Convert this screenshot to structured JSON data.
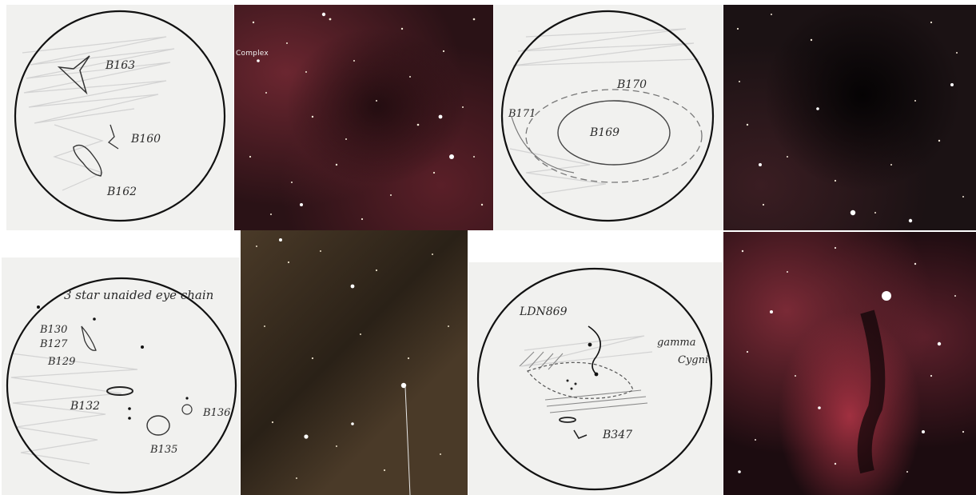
{
  "sketch_1": {
    "labels": {
      "b163": "B163",
      "b160": "B160",
      "b162": "B162"
    }
  },
  "photo_1": {
    "caption": "Complex"
  },
  "sketch_2": {
    "labels": {
      "b170": "B170",
      "b171": "B171",
      "b169": "B169"
    }
  },
  "sketch_3": {
    "labels": {
      "note": "3 star unaided eye chain",
      "b130": "B130",
      "b127": "B127",
      "b129": "B129",
      "b132": "B132",
      "b135": "B135",
      "b136": "B136"
    }
  },
  "sketch_4": {
    "labels": {
      "ldn": "LDN869",
      "gamma": "gamma",
      "cygni": "Cygni",
      "b347": "B347"
    }
  },
  "colors": {
    "sketch_paper": "#f1f1ef",
    "pencil": "#2a2a2a",
    "nebula_red": "#7a2a30",
    "sky_dark": "#120a0c"
  }
}
